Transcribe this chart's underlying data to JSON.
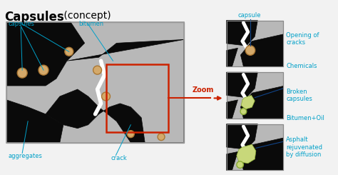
{
  "title_bold": "Capsules",
  "title_normal": " (concept)",
  "bg_color": "#f2f2f2",
  "black_color": "#0a0a0a",
  "gray_color": "#b8b8b8",
  "white_crack_color": "#ffffff",
  "capsule_color": "#d4a96a",
  "green_color": "#c8d87a",
  "cyan_color": "#00a0c8",
  "red_color": "#cc2200",
  "zoom_label": "Zoom"
}
